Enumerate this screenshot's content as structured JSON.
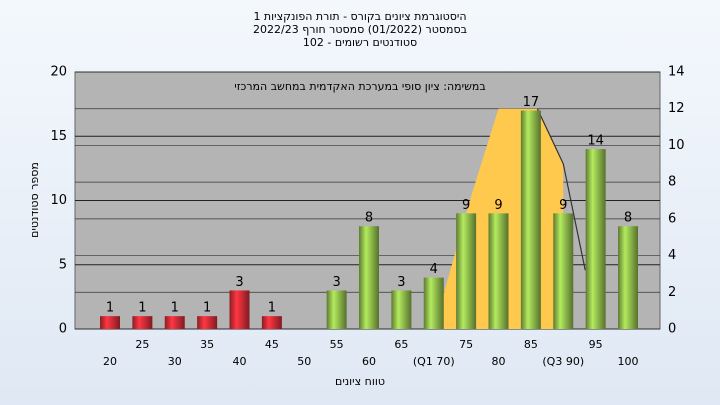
{
  "chart_data": {
    "type": "bar",
    "title": [
      "היסטוגרמת ציונים בקורס - תורת הפונקציות 1",
      "בסמסטר (01/2022) סמסטר חורף 2022/23",
      "סטודנטים רשומים - 102"
    ],
    "annotation": "במשימה: ציון סופי במערכת האקדמית במחשב המרכזי",
    "y_label": "מספר סטודנטים",
    "x_label": "טווח ציונים",
    "categories": [
      "20",
      "25",
      "30",
      "35",
      "40",
      "45",
      "50",
      "55",
      "60",
      "65",
      "(Q1 70)",
      "75",
      "80",
      "85",
      "(Q3 90)",
      "95",
      "100"
    ],
    "values": [
      1,
      1,
      1,
      1,
      3,
      1,
      0,
      3,
      8,
      3,
      4,
      9,
      9,
      17,
      9,
      14,
      8
    ],
    "colors": [
      "#e8303a",
      "#e8303a",
      "#e8303a",
      "#e8303a",
      "#e8303a",
      "#e8303a",
      "#e8303a",
      "#9ccc52",
      "#9ccc52",
      "#9ccc52",
      "#9ccc52",
      "#9ccc52",
      "#9ccc52",
      "#9ccc52",
      "#9ccc52",
      "#9ccc52",
      "#9ccc52"
    ],
    "ylim": [
      0,
      20
    ],
    "yticks": [
      0,
      5,
      10,
      15,
      20
    ],
    "y2lim": [
      0,
      14
    ],
    "y2ticks": [
      0,
      2,
      4,
      6,
      8,
      10,
      12,
      14
    ],
    "area": {
      "x": [
        70,
        76,
        80,
        86,
        90
      ],
      "values": [
        0,
        7.5,
        12,
        12,
        9
      ],
      "color": "#ffc94d",
      "axis": "y2"
    },
    "curve": {
      "x": [
        86,
        90,
        93.4
      ],
      "values": [
        12,
        9,
        3.2
      ],
      "color": "#333333",
      "axis": "y2"
    },
    "grid": true
  }
}
